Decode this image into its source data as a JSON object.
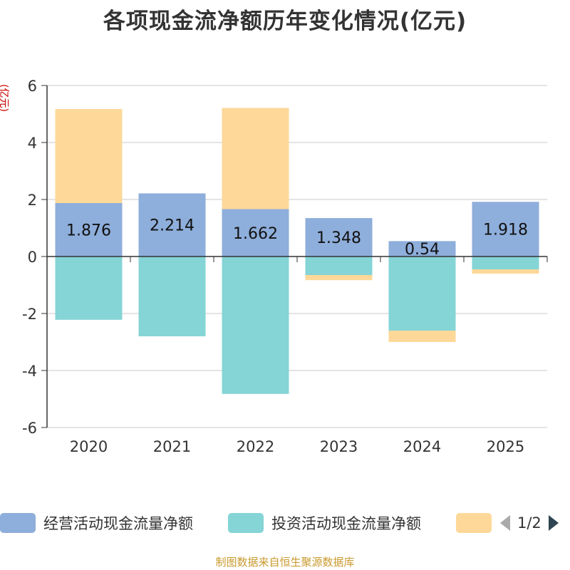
{
  "chart_data": {
    "type": "bar",
    "stacked": true,
    "title": "各项现金流净额历年变化情况(亿元)",
    "ylabel": "(亿元)",
    "ylim": [
      -6,
      6
    ],
    "yticks": [
      6,
      4,
      2,
      0,
      -2,
      -4,
      -6
    ],
    "categories": [
      "2020",
      "2021",
      "2022",
      "2023",
      "2024",
      "2025"
    ],
    "series": [
      {
        "name": "经营活动现金流量净额",
        "color": "#8eaedb",
        "values": [
          1.876,
          2.214,
          1.662,
          1.348,
          0.54,
          1.918
        ],
        "labels": [
          "1.876",
          "2.214",
          "1.662",
          "1.348",
          "0.54",
          "1.918"
        ]
      },
      {
        "name": "投资活动现金流量净额",
        "color": "#85d4d6",
        "values": [
          -2.22,
          -2.8,
          -4.82,
          -0.65,
          -2.6,
          -0.45
        ]
      },
      {
        "name": "",
        "color": "#fdd899",
        "values": [
          3.3,
          0,
          3.55,
          -0.18,
          -0.4,
          -0.15
        ]
      }
    ],
    "grid": true,
    "legend_position": "bottom"
  },
  "legend": {
    "page": "1/2"
  },
  "source": "制图数据来自恒生聚源数据库"
}
